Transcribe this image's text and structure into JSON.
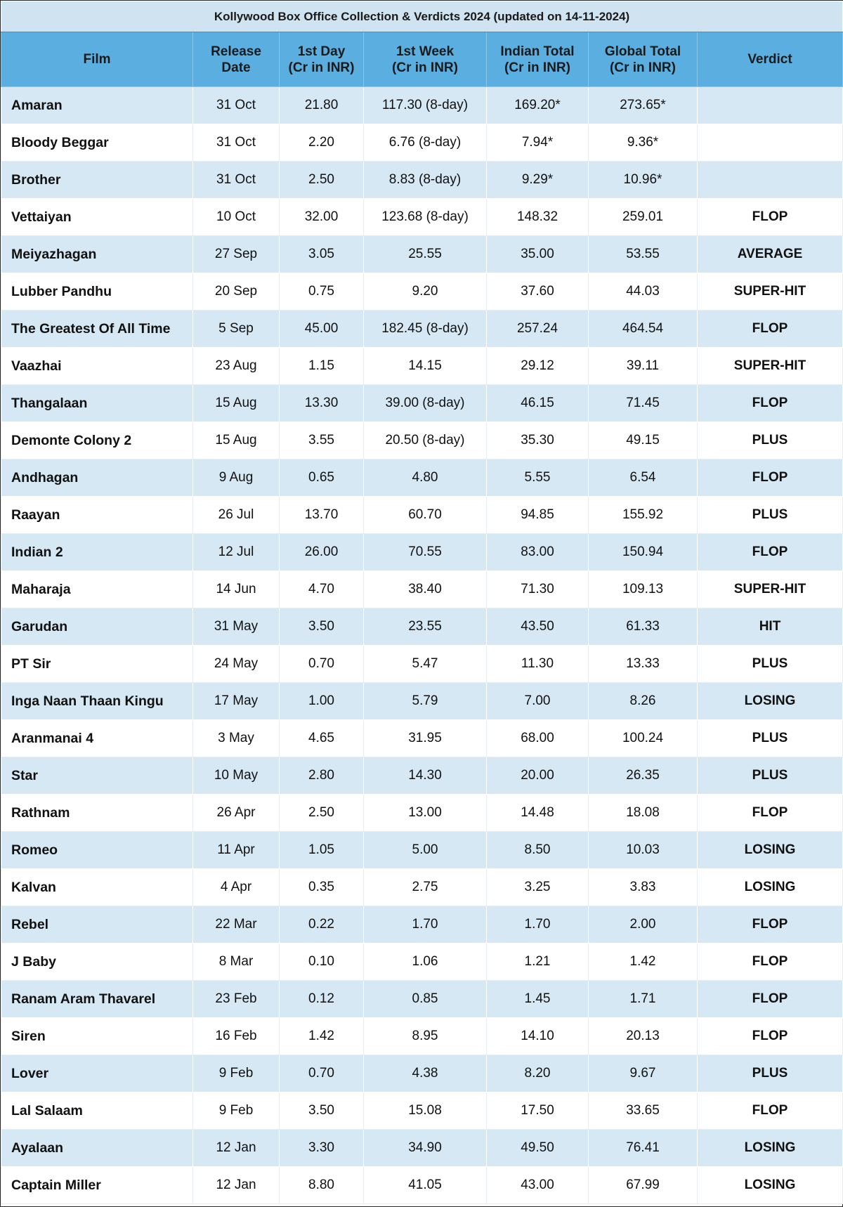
{
  "title": "Kollywood Box Office Collection & Verdicts 2024 (updated on 14-11-2024)",
  "columns": [
    {
      "line1": "Film",
      "line2": ""
    },
    {
      "line1": "Release",
      "line2": "Date"
    },
    {
      "line1": "1st Day",
      "line2": "(Cr in INR)"
    },
    {
      "line1": "1st Week",
      "line2": "(Cr in INR)"
    },
    {
      "line1": "Indian Total",
      "line2": "(Cr in INR)"
    },
    {
      "line1": "Global Total",
      "line2": "(Cr in INR)"
    },
    {
      "line1": "Verdict",
      "line2": ""
    }
  ],
  "rows": [
    {
      "film": "Amaran",
      "release": "31 Oct",
      "day1": "21.80",
      "week1": "117.30 (8-day)",
      "india": "169.20*",
      "global": "273.65*",
      "verdict": ""
    },
    {
      "film": "Bloody Beggar",
      "release": "31 Oct",
      "day1": "2.20",
      "week1": "6.76 (8-day)",
      "india": "7.94*",
      "global": "9.36*",
      "verdict": ""
    },
    {
      "film": "Brother",
      "release": "31 Oct",
      "day1": "2.50",
      "week1": "8.83 (8-day)",
      "india": "9.29*",
      "global": "10.96*",
      "verdict": ""
    },
    {
      "film": "Vettaiyan",
      "release": "10 Oct",
      "day1": "32.00",
      "week1": "123.68 (8-day)",
      "india": "148.32",
      "global": "259.01",
      "verdict": "FLOP"
    },
    {
      "film": "Meiyazhagan",
      "release": "27 Sep",
      "day1": "3.05",
      "week1": "25.55",
      "india": "35.00",
      "global": "53.55",
      "verdict": "AVERAGE"
    },
    {
      "film": "Lubber Pandhu",
      "release": "20 Sep",
      "day1": "0.75",
      "week1": "9.20",
      "india": "37.60",
      "global": "44.03",
      "verdict": "SUPER-HIT"
    },
    {
      "film": "The Greatest Of All Time",
      "release": "5 Sep",
      "day1": "45.00",
      "week1": "182.45 (8-day)",
      "india": "257.24",
      "global": "464.54",
      "verdict": "FLOP"
    },
    {
      "film": "Vaazhai",
      "release": "23 Aug",
      "day1": "1.15",
      "week1": "14.15",
      "india": "29.12",
      "global": "39.11",
      "verdict": "SUPER-HIT"
    },
    {
      "film": "Thangalaan",
      "release": "15 Aug",
      "day1": "13.30",
      "week1": "39.00 (8-day)",
      "india": "46.15",
      "global": "71.45",
      "verdict": "FLOP"
    },
    {
      "film": "Demonte Colony 2",
      "release": "15 Aug",
      "day1": "3.55",
      "week1": "20.50 (8-day)",
      "india": "35.30",
      "global": "49.15",
      "verdict": "PLUS"
    },
    {
      "film": "Andhagan",
      "release": "9 Aug",
      "day1": "0.65",
      "week1": "4.80",
      "india": "5.55",
      "global": "6.54",
      "verdict": "FLOP"
    },
    {
      "film": "Raayan",
      "release": "26 Jul",
      "day1": "13.70",
      "week1": "60.70",
      "india": "94.85",
      "global": "155.92",
      "verdict": "PLUS"
    },
    {
      "film": "Indian 2",
      "release": "12 Jul",
      "day1": "26.00",
      "week1": "70.55",
      "india": "83.00",
      "global": "150.94",
      "verdict": "FLOP"
    },
    {
      "film": "Maharaja",
      "release": "14 Jun",
      "day1": "4.70",
      "week1": "38.40",
      "india": "71.30",
      "global": "109.13",
      "verdict": "SUPER-HIT"
    },
    {
      "film": "Garudan",
      "release": "31 May",
      "day1": "3.50",
      "week1": "23.55",
      "india": "43.50",
      "global": "61.33",
      "verdict": "HIT"
    },
    {
      "film": "PT Sir",
      "release": "24 May",
      "day1": "0.70",
      "week1": "5.47",
      "india": "11.30",
      "global": "13.33",
      "verdict": "PLUS"
    },
    {
      "film": "Inga Naan Thaan Kingu",
      "release": "17 May",
      "day1": "1.00",
      "week1": "5.79",
      "india": "7.00",
      "global": "8.26",
      "verdict": "LOSING"
    },
    {
      "film": "Aranmanai 4",
      "release": "3 May",
      "day1": "4.65",
      "week1": "31.95",
      "india": "68.00",
      "global": "100.24",
      "verdict": "PLUS"
    },
    {
      "film": "Star",
      "release": "10 May",
      "day1": "2.80",
      "week1": "14.30",
      "india": "20.00",
      "global": "26.35",
      "verdict": "PLUS"
    },
    {
      "film": "Rathnam",
      "release": "26 Apr",
      "day1": "2.50",
      "week1": "13.00",
      "india": "14.48",
      "global": "18.08",
      "verdict": "FLOP"
    },
    {
      "film": "Romeo",
      "release": "11 Apr",
      "day1": "1.05",
      "week1": "5.00",
      "india": "8.50",
      "global": "10.03",
      "verdict": "LOSING"
    },
    {
      "film": "Kalvan",
      "release": "4 Apr",
      "day1": "0.35",
      "week1": "2.75",
      "india": "3.25",
      "global": "3.83",
      "verdict": "LOSING"
    },
    {
      "film": "Rebel",
      "release": "22 Mar",
      "day1": "0.22",
      "week1": "1.70",
      "india": "1.70",
      "global": "2.00",
      "verdict": "FLOP"
    },
    {
      "film": "J Baby",
      "release": "8 Mar",
      "day1": "0.10",
      "week1": "1.06",
      "india": "1.21",
      "global": "1.42",
      "verdict": "FLOP"
    },
    {
      "film": "Ranam Aram Thavarel",
      "release": "23 Feb",
      "day1": "0.12",
      "week1": "0.85",
      "india": "1.45",
      "global": "1.71",
      "verdict": "FLOP"
    },
    {
      "film": "Siren",
      "release": "16 Feb",
      "day1": "1.42",
      "week1": "8.95",
      "india": "14.10",
      "global": "20.13",
      "verdict": "FLOP"
    },
    {
      "film": "Lover",
      "release": "9 Feb",
      "day1": "0.70",
      "week1": "4.38",
      "india": "8.20",
      "global": "9.67",
      "verdict": "PLUS"
    },
    {
      "film": "Lal Salaam",
      "release": "9 Feb",
      "day1": "3.50",
      "week1": "15.08",
      "india": "17.50",
      "global": "33.65",
      "verdict": "FLOP"
    },
    {
      "film": "Ayalaan",
      "release": "12 Jan",
      "day1": "3.30",
      "week1": "34.90",
      "india": "49.50",
      "global": "76.41",
      "verdict": "LOSING"
    },
    {
      "film": "Captain Miller",
      "release": "12 Jan",
      "day1": "8.80",
      "week1": "41.05",
      "india": "43.00",
      "global": "67.99",
      "verdict": "LOSING"
    }
  ]
}
